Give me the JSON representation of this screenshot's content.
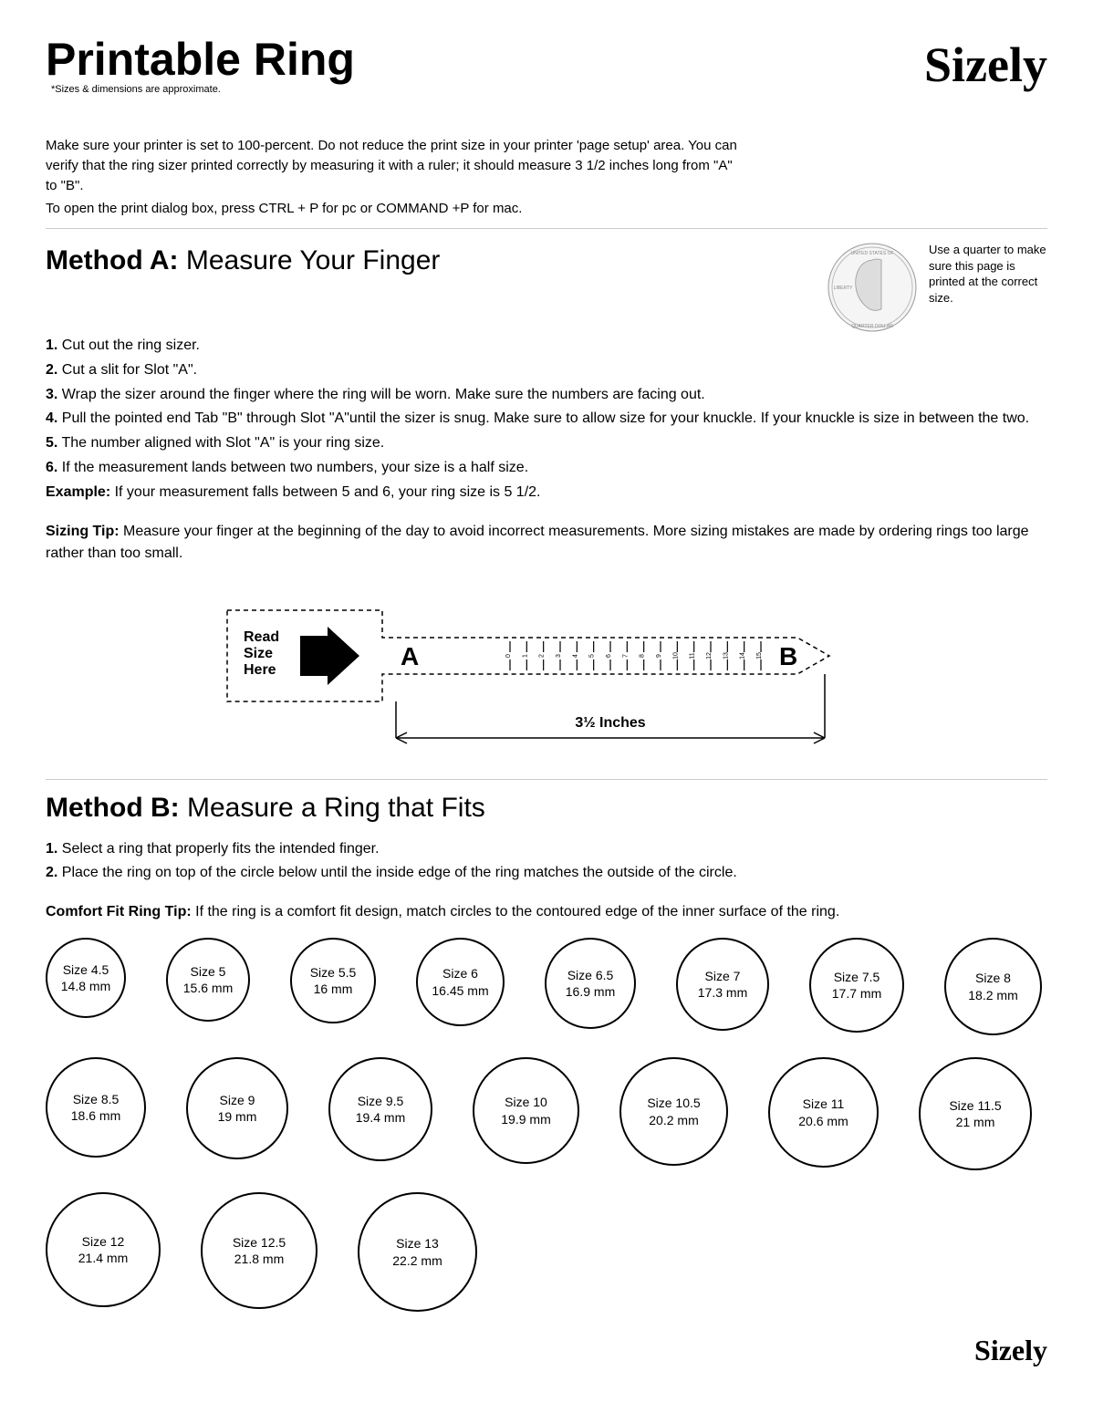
{
  "header": {
    "title": "Printable Ring",
    "footnote": "*Sizes & dimensions are approximate.",
    "logo": "Sizely"
  },
  "intro": {
    "p1": "Make sure your printer is set to 100-percent.  Do not reduce the print size in your printer 'page setup' area. You can verify that the ring sizer printed correctly by measuring it with a ruler; it should measure 3 1/2 inches long from \"A\" to \"B\".",
    "p2": "To open the print dialog box, press CTRL + P for pc or COMMAND +P for mac."
  },
  "methodA": {
    "title_bold": "Method A:",
    "title_rest": " Measure Your Finger",
    "quarter_note": "Use a quarter to make sure this page is printed at the correct size.",
    "steps": [
      {
        "n": "1.",
        "t": " Cut out the ring sizer."
      },
      {
        "n": "2.",
        "t": " Cut a slit for Slot \"A\"."
      },
      {
        "n": "3.",
        "t": " Wrap the sizer around the finger where the ring will be worn. Make sure the numbers are facing out."
      },
      {
        "n": "4.",
        "t": " Pull the pointed end Tab \"B\" through Slot \"A\"until the sizer is snug. Make sure to allow size for your knuckle. If your knuckle is size in between the two."
      },
      {
        "n": "5.",
        "t": " The number aligned with Slot \"A\" is your ring size."
      },
      {
        "n": "6.",
        "t": " If the measurement lands between two numbers, your size is a half size."
      }
    ],
    "example_label": "Example:",
    "example_text": " If your measurement falls between 5 and 6, your ring size is 5 1/2.",
    "tip_label": "Sizing Tip:",
    "tip_text": " Measure your finger at the beginning of the day to avoid incorrect measurements. More sizing mistakes are made by ordering rings too large rather than too small.",
    "sizer": {
      "read_label_1": "Read",
      "read_label_2": "Size",
      "read_label_3": "Here",
      "A": "A",
      "B": "B",
      "ticks": [
        "0",
        "1",
        "2",
        "3",
        "4",
        "5",
        "6",
        "7",
        "8",
        "9",
        "10",
        "11",
        "12",
        "13",
        "14",
        "15"
      ],
      "measure": "3½ Inches"
    }
  },
  "methodB": {
    "title_bold": "Method B:",
    "title_rest": " Measure a Ring that Fits",
    "steps": [
      {
        "n": "1.",
        "t": " Select a ring that properly fits the intended finger."
      },
      {
        "n": "2.",
        "t": " Place the ring on top of the circle below until the inside edge of the ring matches the outside of the circle."
      }
    ],
    "tip_label": "Comfort Fit Ring Tip:",
    "tip_text": " If the ring is a comfort fit design, match circles to the contoured edge of the inner surface of the ring.",
    "rows": [
      [
        {
          "size": "Size 4.5",
          "mm": "14.8 mm",
          "d": 88
        },
        {
          "size": "Size 5",
          "mm": "15.6 mm",
          "d": 92
        },
        {
          "size": "Size 5.5",
          "mm": "16 mm",
          "d": 94
        },
        {
          "size": "Size 6",
          "mm": "16.45 mm",
          "d": 97
        },
        {
          "size": "Size 6.5",
          "mm": "16.9 mm",
          "d": 100
        },
        {
          "size": "Size 7",
          "mm": "17.3 mm",
          "d": 102
        },
        {
          "size": "Size 7.5",
          "mm": "17.7 mm",
          "d": 104
        },
        {
          "size": "Size 8",
          "mm": "18.2 mm",
          "d": 107
        }
      ],
      [
        {
          "size": "Size 8.5",
          "mm": "18.6 mm",
          "d": 110
        },
        {
          "size": "Size 9",
          "mm": "19 mm",
          "d": 112
        },
        {
          "size": "Size 9.5",
          "mm": "19.4 mm",
          "d": 114
        },
        {
          "size": "Size 10",
          "mm": "19.9 mm",
          "d": 117
        },
        {
          "size": "Size 10.5",
          "mm": "20.2 mm",
          "d": 119
        },
        {
          "size": "Size 11",
          "mm": "20.6 mm",
          "d": 121
        },
        {
          "size": "Size 11.5",
          "mm": "21 mm",
          "d": 124
        }
      ],
      [
        {
          "size": "Size 12",
          "mm": "21.4 mm",
          "d": 126
        },
        {
          "size": "Size 12.5",
          "mm": "21.8 mm",
          "d": 128
        },
        {
          "size": "Size 13",
          "mm": "22.2 mm",
          "d": 131
        }
      ]
    ]
  }
}
